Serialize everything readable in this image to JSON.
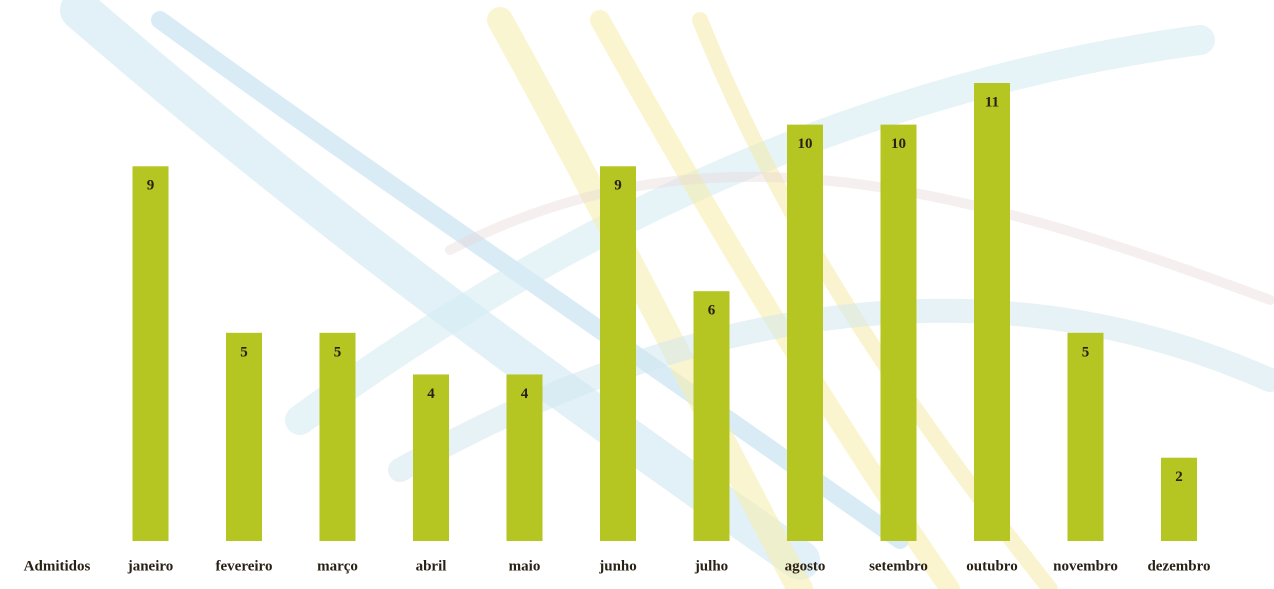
{
  "chart_data": {
    "type": "bar",
    "categories": [
      "janeiro",
      "fevereiro",
      "março",
      "abril",
      "maio",
      "junho",
      "julho",
      "agosto",
      "setembro",
      "outubro",
      "novembro",
      "dezembro"
    ],
    "series": [
      {
        "name": "Admitidos",
        "color": "#b5c521",
        "values": [
          9,
          5,
          5,
          4,
          4,
          9,
          6,
          10,
          10,
          11,
          5,
          2
        ]
      }
    ]
  }
}
